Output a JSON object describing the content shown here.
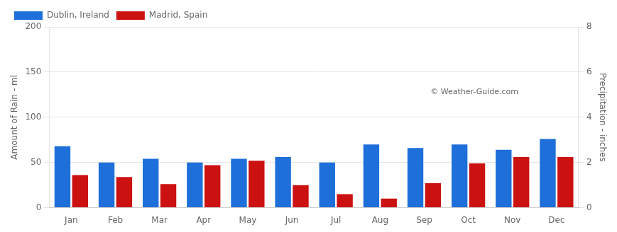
{
  "chart_data": {
    "type": "bar",
    "categories": [
      "Jan",
      "Feb",
      "Mar",
      "Apr",
      "May",
      "Jun",
      "Jul",
      "Aug",
      "Sep",
      "Oct",
      "Nov",
      "Dec"
    ],
    "series": [
      {
        "name": "Dublin, Ireland",
        "color": "#1E6FD9",
        "values": [
          68,
          50,
          54,
          50,
          54,
          56,
          50,
          70,
          66,
          70,
          64,
          76
        ]
      },
      {
        "name": "Madrid, Spain",
        "color": "#CC1111",
        "values": [
          36,
          34,
          26,
          47,
          52,
          25,
          15,
          10,
          27,
          49,
          56,
          56
        ]
      }
    ],
    "ylabel": "Amount of Rain - ml",
    "y2label": "Precipitation - inches",
    "ylim": [
      0,
      200
    ],
    "yticks": [
      0,
      50,
      100,
      150,
      200
    ],
    "y2lim": [
      0,
      8
    ],
    "y2ticks": [
      0,
      2,
      4,
      6,
      8
    ],
    "grid": true,
    "legend": "upper left",
    "annotations": [
      "© Weather-Guide.com"
    ]
  }
}
